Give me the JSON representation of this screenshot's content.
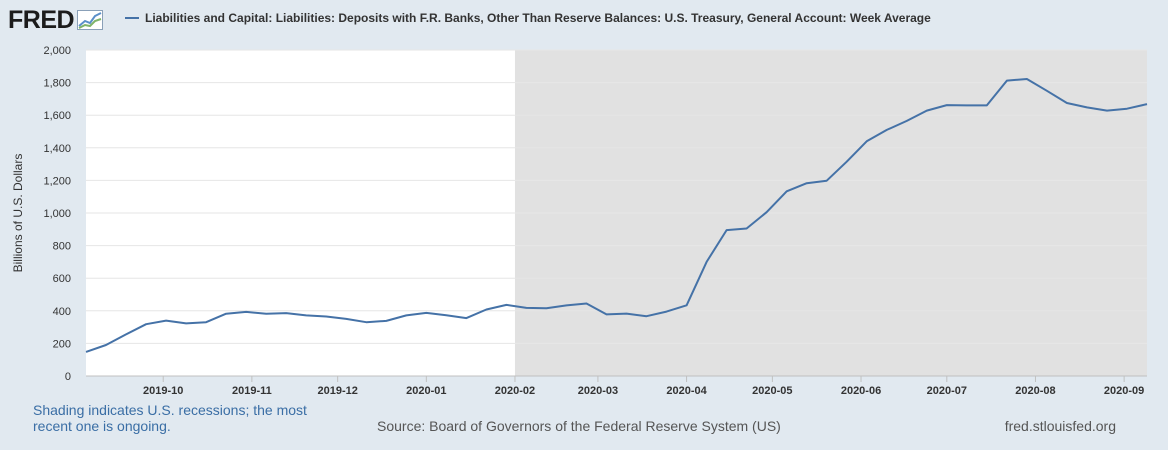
{
  "header": {
    "logo_text": "FRED",
    "legend_label": "Liabilities and Capital: Liabilities: Deposits with F.R. Banks, Other Than Reserve Balances: U.S. Treasury, General Account: Week Average"
  },
  "footer": {
    "note": "Shading indicates U.S. recessions; the most recent one is ongoing.",
    "source": "Source: Board of Governors of the Federal Reserve System (US)",
    "site": "fred.stlouisfed.org"
  },
  "colors": {
    "series": "#4572a7",
    "recession": "#e1e1e1",
    "background": "#e1e9f0"
  },
  "chart_data": {
    "type": "line",
    "title": "",
    "xlabel": "",
    "ylabel": "Billions of U.S. Dollars",
    "ylim": [
      0,
      2000
    ],
    "yticks": [
      0,
      200,
      400,
      600,
      800,
      1000,
      1200,
      1400,
      1600,
      1800,
      2000
    ],
    "xlim": [
      "2019-09-04",
      "2020-09-09"
    ],
    "xticks": [
      {
        "date": "2019-10-01",
        "label": "2019-10"
      },
      {
        "date": "2019-11-01",
        "label": "2019-11"
      },
      {
        "date": "2019-12-01",
        "label": "2019-12"
      },
      {
        "date": "2020-01-01",
        "label": "2020-01"
      },
      {
        "date": "2020-02-01",
        "label": "2020-02"
      },
      {
        "date": "2020-03-01",
        "label": "2020-03"
      },
      {
        "date": "2020-04-01",
        "label": "2020-04"
      },
      {
        "date": "2020-05-01",
        "label": "2020-05"
      },
      {
        "date": "2020-06-01",
        "label": "2020-06"
      },
      {
        "date": "2020-07-01",
        "label": "2020-07"
      },
      {
        "date": "2020-08-01",
        "label": "2020-08"
      },
      {
        "date": "2020-09-01",
        "label": "2020-09"
      }
    ],
    "grid": true,
    "recession": {
      "start": "2020-02-01",
      "end": "2020-09-09"
    },
    "series": [
      {
        "x": [
          "2019-09-04",
          "2019-09-11",
          "2019-09-18",
          "2019-09-25",
          "2019-10-02",
          "2019-10-09",
          "2019-10-16",
          "2019-10-23",
          "2019-10-30",
          "2019-11-06",
          "2019-11-13",
          "2019-11-20",
          "2019-11-27",
          "2019-12-04",
          "2019-12-11",
          "2019-12-18",
          "2019-12-25",
          "2020-01-01",
          "2020-01-08",
          "2020-01-15",
          "2020-01-22",
          "2020-01-29",
          "2020-02-05",
          "2020-02-12",
          "2020-02-19",
          "2020-02-26",
          "2020-03-04",
          "2020-03-11",
          "2020-03-18",
          "2020-03-25",
          "2020-04-01",
          "2020-04-08",
          "2020-04-15",
          "2020-04-22",
          "2020-04-29",
          "2020-05-06",
          "2020-05-13",
          "2020-05-20",
          "2020-05-27",
          "2020-06-03",
          "2020-06-10",
          "2020-06-17",
          "2020-06-24",
          "2020-07-01",
          "2020-07-08",
          "2020-07-15",
          "2020-07-22",
          "2020-07-29",
          "2020-08-05",
          "2020-08-12",
          "2020-08-19",
          "2020-08-26",
          "2020-09-02",
          "2020-09-09"
        ],
        "values": [
          148,
          190,
          255,
          318,
          340,
          323,
          330,
          382,
          393,
          382,
          386,
          372,
          365,
          350,
          330,
          338,
          372,
          387,
          373,
          355,
          408,
          436,
          418,
          416,
          433,
          445,
          378,
          383,
          367,
          395,
          434,
          700,
          895,
          905,
          1005,
          1133,
          1183,
          1198,
          1315,
          1440,
          1510,
          1565,
          1628,
          1662,
          1660,
          1660,
          1812,
          1822,
          1750,
          1675,
          1648,
          1628,
          1640,
          1668
        ]
      }
    ]
  }
}
